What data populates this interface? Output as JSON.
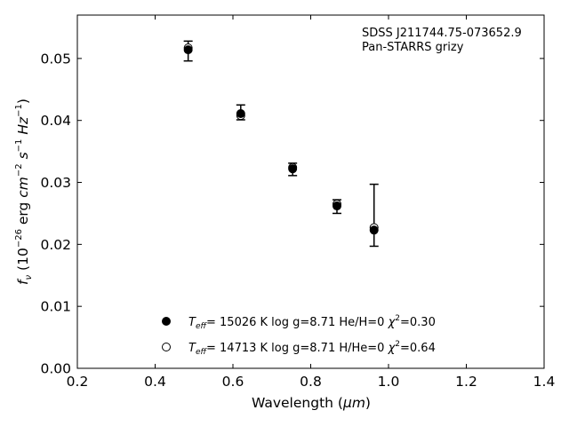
{
  "chart_data": {
    "type": "scatter",
    "title": "",
    "annotation": {
      "object": "SDSS J211744.75-073652.9",
      "survey": "Pan-STARRS grizy"
    },
    "xlabel": {
      "main": "Wavelength (",
      "unit": "μm",
      "close": ")"
    },
    "ylabel": {
      "f": "f",
      "nu": "ν",
      "open": " (10",
      "exp26": "−26",
      "erg": " erg ",
      "cm": "cm",
      "exp2": "−2",
      "s": " s",
      "exp1a": "−1",
      "hz": " Hz",
      "exp1b": "−1",
      "close": ")"
    },
    "xlim": [
      0.2,
      1.4
    ],
    "ylim": [
      0.0,
      0.057
    ],
    "xticks": [
      0.2,
      0.4,
      0.6,
      0.8,
      1.0,
      1.2,
      1.4
    ],
    "yticks": [
      0.0,
      0.01,
      0.02,
      0.03,
      0.04,
      0.05
    ],
    "xtick_labels": [
      "0.2",
      "0.4",
      "0.6",
      "0.8",
      "1.0",
      "1.2",
      "1.4"
    ],
    "ytick_labels": [
      "0.00",
      "0.01",
      "0.02",
      "0.03",
      "0.04",
      "0.05"
    ],
    "observed": {
      "x": [
        0.4849,
        0.6201,
        0.7535,
        0.8674,
        0.9628
      ],
      "y": [
        0.0512,
        0.0413,
        0.0321,
        0.0261,
        0.0247
      ],
      "yerr": [
        0.0016,
        0.0012,
        0.001,
        0.0011,
        0.005
      ]
    },
    "series": [
      {
        "name": "He/H=0 model",
        "marker": "filled",
        "x": [
          0.4849,
          0.6201,
          0.7535,
          0.8674,
          0.9628
        ],
        "y": [
          0.0514,
          0.0411,
          0.0322,
          0.0262,
          0.0223
        ]
      },
      {
        "name": "H/He=0 model",
        "marker": "open",
        "x": [
          0.4849,
          0.6201,
          0.7535,
          0.8674,
          0.9628
        ],
        "y": [
          0.0517,
          0.0408,
          0.0324,
          0.0265,
          0.0227
        ]
      }
    ],
    "legend": {
      "placement": "lower-center",
      "entries": [
        {
          "marker": "filled",
          "T": "T",
          "eff": "eff",
          "rest": "= 15026 K  log g=8.71  He/H=0  ",
          "chi": "χ",
          "two": "2",
          "val": "=0.30"
        },
        {
          "marker": "open",
          "T": "T",
          "eff": "eff",
          "rest": "= 14713 K  log g=8.71  H/He=0  ",
          "chi": "χ",
          "two": "2",
          "val": "=0.64"
        }
      ]
    },
    "grid": false
  }
}
